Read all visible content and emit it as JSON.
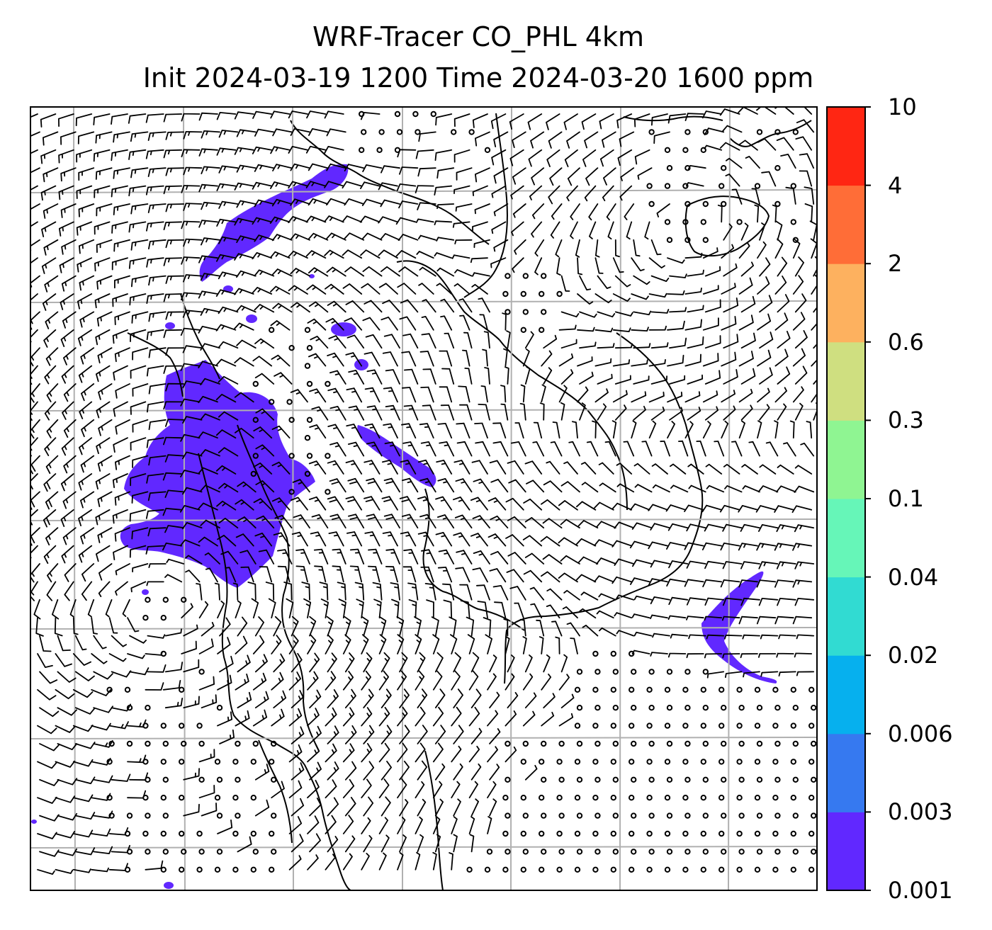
{
  "title": {
    "line1": "WRF-Tracer CO_PHL 4km",
    "line2": "Init 2024-03-19 1200 Time 2024-03-20 1600 ppm"
  },
  "colorbar": {
    "levels": [
      "0.001",
      "0.003",
      "0.006",
      "0.02",
      "0.04",
      "0.1",
      "0.3",
      "0.6",
      "2",
      "4",
      "10"
    ],
    "colors": [
      "#6128ff",
      "#3679f0",
      "#06b0ee",
      "#31dbd2",
      "#66f6b8",
      "#8ff592",
      "#cfdf80",
      "#fdb15f",
      "#ff6d37",
      "#ff2613"
    ]
  },
  "map": {
    "plume_color": "#6128ff",
    "grid_color": "#b0b0b0",
    "barb_color": "#000000",
    "coast_color": "#000000"
  }
}
